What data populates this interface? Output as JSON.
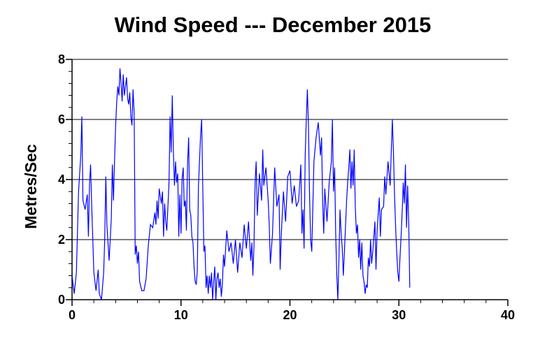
{
  "chart_data": {
    "type": "line",
    "title": "Wind Speed --- December 2015",
    "xlabel": "",
    "ylabel": "Metres/Sec",
    "xlim": [
      0,
      40
    ],
    "ylim": [
      0,
      8
    ],
    "x_ticks": [
      0,
      10,
      20,
      30,
      40
    ],
    "y_ticks": [
      0,
      2,
      4,
      6,
      8
    ],
    "grid": "horizontal",
    "legend": "none",
    "line_color": "#0000ff",
    "series": [
      {
        "points": [
          [
            0.0,
            0.8
          ],
          [
            0.2,
            0.2
          ],
          [
            0.4,
            0.9
          ],
          [
            0.6,
            3.6
          ],
          [
            0.8,
            4.8
          ],
          [
            0.9,
            6.1
          ],
          [
            1.0,
            3.3
          ],
          [
            1.2,
            3.0
          ],
          [
            1.4,
            3.5
          ],
          [
            1.5,
            2.1
          ],
          [
            1.6,
            3.8
          ],
          [
            1.7,
            4.5
          ],
          [
            1.8,
            3.2
          ],
          [
            2.0,
            0.9
          ],
          [
            2.2,
            0.3
          ],
          [
            2.4,
            1.0
          ],
          [
            2.5,
            0.2
          ],
          [
            2.7,
            0.0
          ],
          [
            2.9,
            0.9
          ],
          [
            3.0,
            2.0
          ],
          [
            3.1,
            4.1
          ],
          [
            3.2,
            2.5
          ],
          [
            3.4,
            1.3
          ],
          [
            3.6,
            2.7
          ],
          [
            3.7,
            4.5
          ],
          [
            3.8,
            3.3
          ],
          [
            3.9,
            4.6
          ],
          [
            4.0,
            5.8
          ],
          [
            4.1,
            6.6
          ],
          [
            4.2,
            7.1
          ],
          [
            4.3,
            6.8
          ],
          [
            4.4,
            7.7
          ],
          [
            4.5,
            7.2
          ],
          [
            4.6,
            6.6
          ],
          [
            4.7,
            7.5
          ],
          [
            4.8,
            6.8
          ],
          [
            5.0,
            7.4
          ],
          [
            5.1,
            6.7
          ],
          [
            5.2,
            6.5
          ],
          [
            5.3,
            6.9
          ],
          [
            5.4,
            6.1
          ],
          [
            5.5,
            5.8
          ],
          [
            5.6,
            7.0
          ],
          [
            5.7,
            6.2
          ],
          [
            5.8,
            1.5
          ],
          [
            5.9,
            1.8
          ],
          [
            6.0,
            1.2
          ],
          [
            6.1,
            1.6
          ],
          [
            6.2,
            0.6
          ],
          [
            6.4,
            0.3
          ],
          [
            6.6,
            0.3
          ],
          [
            6.8,
            0.7
          ],
          [
            7.0,
            1.8
          ],
          [
            7.2,
            2.5
          ],
          [
            7.4,
            2.4
          ],
          [
            7.6,
            2.9
          ],
          [
            7.7,
            2.5
          ],
          [
            7.8,
            3.3
          ],
          [
            7.9,
            2.7
          ],
          [
            8.0,
            3.7
          ],
          [
            8.2,
            3.2
          ],
          [
            8.3,
            3.6
          ],
          [
            8.4,
            2.1
          ],
          [
            8.5,
            3.2
          ],
          [
            8.6,
            2.6
          ],
          [
            8.7,
            2.3
          ],
          [
            8.9,
            3.9
          ],
          [
            9.0,
            6.1
          ],
          [
            9.1,
            4.9
          ],
          [
            9.2,
            6.8
          ],
          [
            9.3,
            5.0
          ],
          [
            9.4,
            3.8
          ],
          [
            9.5,
            4.6
          ],
          [
            9.6,
            3.9
          ],
          [
            9.7,
            4.2
          ],
          [
            9.8,
            2.1
          ],
          [
            9.9,
            3.5
          ],
          [
            10.0,
            2.2
          ],
          [
            10.1,
            4.0
          ],
          [
            10.2,
            4.4
          ],
          [
            10.3,
            3.1
          ],
          [
            10.4,
            3.3
          ],
          [
            10.5,
            2.3
          ],
          [
            10.6,
            4.5
          ],
          [
            10.7,
            5.4
          ],
          [
            10.8,
            3.0
          ],
          [
            10.9,
            2.8
          ],
          [
            11.0,
            2.1
          ],
          [
            11.1,
            1.9
          ],
          [
            11.2,
            1.1
          ],
          [
            11.3,
            0.6
          ],
          [
            11.4,
            0.5
          ],
          [
            11.5,
            1.0
          ],
          [
            11.6,
            3.8
          ],
          [
            11.7,
            4.6
          ],
          [
            11.8,
            5.5
          ],
          [
            11.9,
            6.0
          ],
          [
            12.0,
            3.7
          ],
          [
            12.1,
            1.6
          ],
          [
            12.2,
            1.8
          ],
          [
            12.3,
            0.4
          ],
          [
            12.4,
            0.8
          ],
          [
            12.5,
            0.2
          ],
          [
            12.6,
            0.8
          ],
          [
            12.7,
            0.4
          ],
          [
            12.8,
            0.9
          ],
          [
            12.9,
            0.0
          ],
          [
            13.0,
            0.6
          ],
          [
            13.1,
            1.1
          ],
          [
            13.2,
            0.0
          ],
          [
            13.3,
            0.7
          ],
          [
            13.4,
            0.9
          ],
          [
            13.5,
            0.4
          ],
          [
            13.6,
            0.7
          ],
          [
            13.7,
            0.1
          ],
          [
            13.8,
            0.5
          ],
          [
            13.9,
            1.5
          ],
          [
            14.0,
            1.1
          ],
          [
            14.2,
            2.3
          ],
          [
            14.4,
            1.6
          ],
          [
            14.6,
            1.9
          ],
          [
            14.8,
            1.2
          ],
          [
            15.0,
            2.0
          ],
          [
            15.2,
            0.9
          ],
          [
            15.4,
            1.9
          ],
          [
            15.6,
            1.4
          ],
          [
            15.8,
            2.5
          ],
          [
            16.0,
            1.7
          ],
          [
            16.2,
            2.6
          ],
          [
            16.4,
            1.3
          ],
          [
            16.5,
            1.9
          ],
          [
            16.6,
            0.8
          ],
          [
            16.7,
            1.8
          ],
          [
            16.8,
            3.9
          ],
          [
            16.9,
            4.6
          ],
          [
            17.0,
            2.8
          ],
          [
            17.2,
            4.2
          ],
          [
            17.4,
            3.3
          ],
          [
            17.5,
            5.0
          ],
          [
            17.6,
            3.8
          ],
          [
            17.8,
            4.4
          ],
          [
            18.0,
            3.3
          ],
          [
            18.1,
            2.5
          ],
          [
            18.2,
            1.2
          ],
          [
            18.4,
            2.2
          ],
          [
            18.6,
            4.4
          ],
          [
            18.8,
            3.1
          ],
          [
            19.0,
            3.5
          ],
          [
            19.1,
            1.0
          ],
          [
            19.2,
            2.1
          ],
          [
            19.4,
            3.6
          ],
          [
            19.6,
            2.6
          ],
          [
            19.8,
            4.1
          ],
          [
            20.0,
            4.3
          ],
          [
            20.2,
            3.2
          ],
          [
            20.4,
            3.8
          ],
          [
            20.6,
            3.1
          ],
          [
            20.8,
            3.3
          ],
          [
            21.0,
            4.5
          ],
          [
            21.1,
            2.2
          ],
          [
            21.2,
            3.0
          ],
          [
            21.3,
            1.7
          ],
          [
            21.4,
            4.8
          ],
          [
            21.5,
            6.0
          ],
          [
            21.6,
            7.0
          ],
          [
            21.7,
            5.8
          ],
          [
            21.8,
            3.5
          ],
          [
            21.9,
            2.0
          ],
          [
            22.0,
            1.6
          ],
          [
            22.2,
            4.6
          ],
          [
            22.4,
            5.4
          ],
          [
            22.6,
            5.9
          ],
          [
            22.8,
            4.8
          ],
          [
            22.9,
            5.4
          ],
          [
            23.0,
            3.3
          ],
          [
            23.1,
            2.2
          ],
          [
            23.2,
            3.7
          ],
          [
            23.4,
            2.6
          ],
          [
            23.6,
            3.9
          ],
          [
            23.8,
            4.6
          ],
          [
            23.9,
            6.0
          ],
          [
            24.0,
            3.6
          ],
          [
            24.1,
            4.4
          ],
          [
            24.2,
            2.2
          ],
          [
            24.3,
            0.8
          ],
          [
            24.4,
            0.0
          ],
          [
            24.5,
            1.4
          ],
          [
            24.6,
            3.0
          ],
          [
            24.7,
            2.2
          ],
          [
            24.8,
            1.7
          ],
          [
            24.9,
            0.8
          ],
          [
            25.0,
            1.6
          ],
          [
            25.2,
            3.3
          ],
          [
            25.3,
            3.9
          ],
          [
            25.4,
            4.4
          ],
          [
            25.5,
            5.0
          ],
          [
            25.6,
            3.7
          ],
          [
            25.7,
            4.6
          ],
          [
            25.8,
            3.8
          ],
          [
            25.9,
            5.0
          ],
          [
            26.0,
            3.1
          ],
          [
            26.1,
            2.2
          ],
          [
            26.2,
            2.5
          ],
          [
            26.3,
            1.4
          ],
          [
            26.4,
            2.0
          ],
          [
            26.5,
            1.0
          ],
          [
            26.6,
            1.9
          ],
          [
            26.7,
            0.8
          ],
          [
            26.8,
            0.6
          ],
          [
            26.9,
            0.2
          ],
          [
            27.0,
            0.5
          ],
          [
            27.1,
            0.4
          ],
          [
            27.2,
            1.4
          ],
          [
            27.3,
            1.1
          ],
          [
            27.4,
            2.0
          ],
          [
            27.5,
            1.2
          ],
          [
            27.6,
            1.6
          ],
          [
            27.8,
            2.6
          ],
          [
            27.9,
            1.0
          ],
          [
            28.0,
            2.3
          ],
          [
            28.2,
            3.4
          ],
          [
            28.3,
            2.1
          ],
          [
            28.4,
            3.0
          ],
          [
            28.6,
            3.1
          ],
          [
            28.7,
            4.1
          ],
          [
            28.8,
            3.5
          ],
          [
            29.0,
            4.6
          ],
          [
            29.2,
            3.8
          ],
          [
            29.3,
            4.9
          ],
          [
            29.4,
            6.0
          ],
          [
            29.5,
            4.9
          ],
          [
            29.6,
            3.5
          ],
          [
            29.7,
            2.4
          ],
          [
            29.8,
            1.6
          ],
          [
            29.9,
            0.9
          ],
          [
            30.0,
            0.6
          ],
          [
            30.1,
            1.4
          ],
          [
            30.2,
            2.1
          ],
          [
            30.3,
            2.9
          ],
          [
            30.4,
            3.9
          ],
          [
            30.5,
            3.2
          ],
          [
            30.6,
            4.5
          ],
          [
            30.7,
            2.4
          ],
          [
            30.8,
            3.8
          ],
          [
            30.9,
            2.6
          ],
          [
            31.0,
            0.4
          ]
        ]
      }
    ]
  }
}
